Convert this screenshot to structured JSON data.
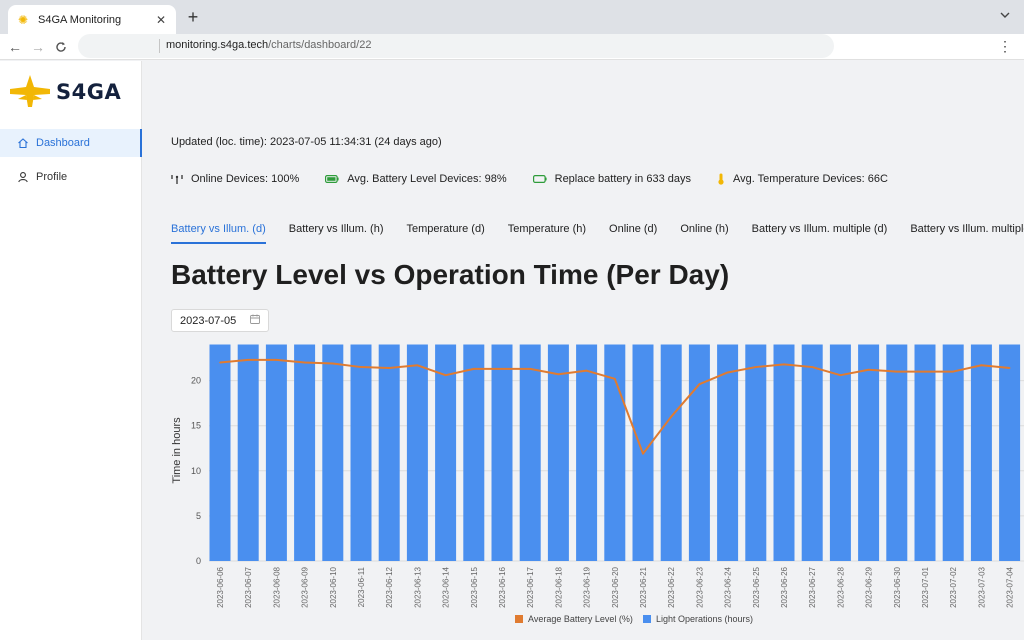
{
  "browser": {
    "tab_title": "S4GA Monitoring",
    "url_host": "monitoring.s4ga.tech",
    "url_path": "/charts/dashboard/22"
  },
  "sidebar": {
    "logo_text": "S4GA",
    "items": [
      {
        "label": "Dashboard",
        "icon": "home-icon",
        "active": true
      },
      {
        "label": "Profile",
        "icon": "user-icon",
        "active": false
      }
    ]
  },
  "main": {
    "updated": "Updated (loc. time): 2023-07-05 11:34:31 (24 days ago)",
    "stats": [
      {
        "label": "Online Devices: 100%",
        "icon": "signal-icon"
      },
      {
        "label": "Avg. Battery Level Devices: 98%",
        "icon": "battery-full-icon"
      },
      {
        "label": "Replace battery in 633 days",
        "icon": "battery-empty-icon"
      },
      {
        "label": "Avg. Temperature Devices: 66C",
        "icon": "thermometer-icon"
      }
    ],
    "tabs": [
      "Battery vs Illum. (d)",
      "Battery vs Illum. (h)",
      "Temperature (d)",
      "Temperature (h)",
      "Online (d)",
      "Online (h)",
      "Battery vs Illum. multiple (d)",
      "Battery vs Illum. multiple (h)"
    ],
    "heading": "Battery Level vs Operation Time (Per Day)",
    "date_value": "2023-07-05"
  },
  "colors": {
    "accent": "#2a72d8",
    "bar": "#4a8fef",
    "line": "#e07b30"
  },
  "chart_data": {
    "type": "bar",
    "ylabel": "Time in hours",
    "yticks": [
      0,
      5,
      10,
      15,
      20
    ],
    "ylim": [
      0,
      24.5
    ],
    "categories": [
      "2023-06-06",
      "2023-06-07",
      "2023-06-08",
      "2023-06-09",
      "2023-06-10",
      "2023-06-11",
      "2023-06-12",
      "2023-06-13",
      "2023-06-14",
      "2023-06-15",
      "2023-06-16",
      "2023-06-17",
      "2023-06-18",
      "2023-06-19",
      "2023-06-20",
      "2023-06-21",
      "2023-06-22",
      "2023-06-23",
      "2023-06-24",
      "2023-06-25",
      "2023-06-26",
      "2023-06-27",
      "2023-06-28",
      "2023-06-29",
      "2023-06-30",
      "2023-07-01",
      "2023-07-02",
      "2023-07-03",
      "2023-07-04"
    ],
    "series": [
      {
        "name": "Light Operations (hours)",
        "kind": "bar",
        "values": [
          24,
          24,
          24,
          24,
          24,
          24,
          24,
          24,
          24,
          24,
          24,
          24,
          24,
          24,
          24,
          24,
          24,
          24,
          24,
          24,
          24,
          24,
          24,
          24,
          24,
          24,
          24,
          24,
          24
        ]
      },
      {
        "name": "Average Battery Level (%)",
        "kind": "line",
        "values": [
          22.0,
          22.3,
          22.3,
          22.0,
          21.9,
          21.5,
          21.4,
          21.7,
          20.6,
          21.3,
          21.3,
          21.3,
          20.7,
          21.1,
          20.2,
          11.9,
          16.0,
          19.6,
          20.9,
          21.5,
          21.8,
          21.5,
          20.6,
          21.2,
          21.0,
          21.0,
          21.0,
          21.7,
          21.4
        ]
      }
    ],
    "legend": "bottom",
    "grid": true
  }
}
